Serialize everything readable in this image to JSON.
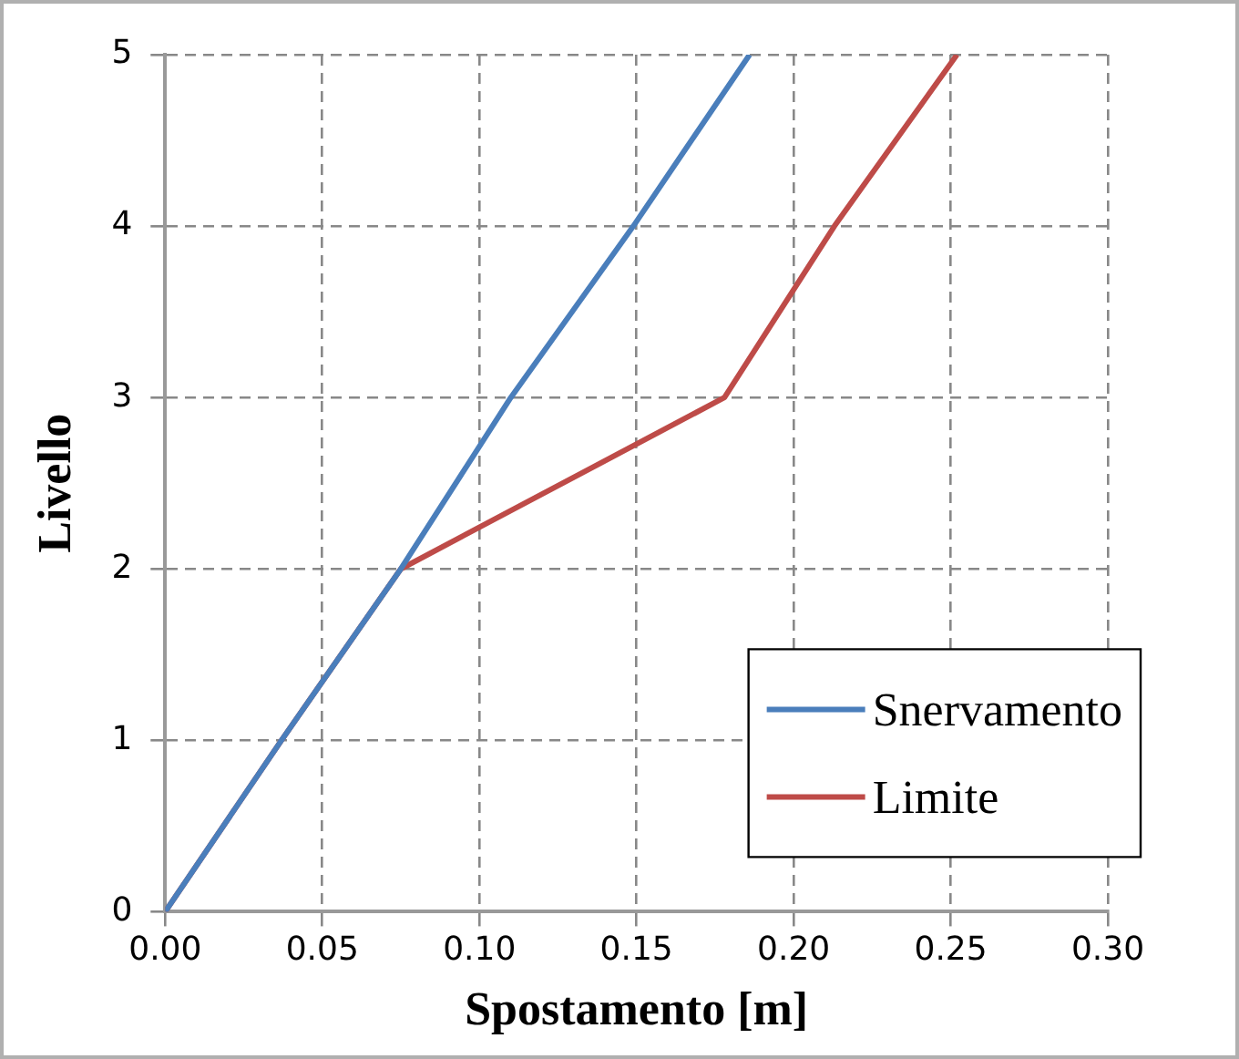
{
  "chart_data": {
    "type": "line",
    "xlabel": "Spostamento [m]",
    "ylabel": "Livello",
    "xlim": [
      0,
      0.3
    ],
    "xticks": [
      {
        "value": 0,
        "label": "0.00"
      },
      {
        "value": 0.05,
        "label": "0.05"
      },
      {
        "value": 0.1,
        "label": "0.10"
      },
      {
        "value": 0.15,
        "label": "0.15"
      },
      {
        "value": 0.2,
        "label": "0.20"
      },
      {
        "value": 0.25,
        "label": "0.25"
      },
      {
        "value": 0.3,
        "label": "0.30"
      }
    ],
    "ylim": [
      0,
      5
    ],
    "yticks": [
      0,
      1,
      2,
      3,
      4,
      5
    ],
    "grid": true,
    "legend": "bottom right",
    "marker": "none",
    "line_style": "solid",
    "series": [
      {
        "name": "Snervamento",
        "color": "#4a7ebb",
        "x": [
          0,
          0.037,
          0.075,
          0.11,
          0.149,
          0.186
        ],
        "values": [
          0,
          1,
          2,
          3,
          4,
          5
        ]
      },
      {
        "name": "Limite",
        "color": "#be4b48",
        "x": [
          0,
          0.037,
          0.075,
          0.178,
          0.213,
          0.252
        ],
        "values": [
          0,
          1,
          2,
          3,
          4,
          5
        ]
      }
    ]
  }
}
